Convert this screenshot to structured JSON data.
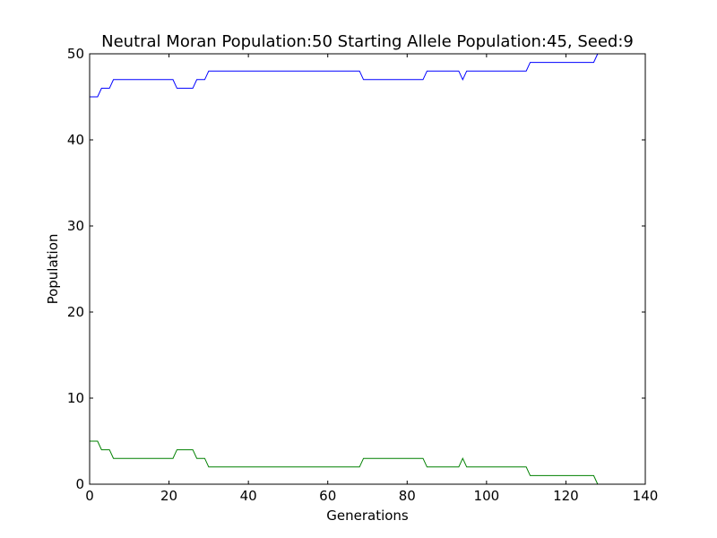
{
  "chart_data": {
    "type": "line",
    "title": "Neutral Moran Population:50 Starting Allele Population:45, Seed:9",
    "xlabel": "Generations",
    "ylabel": "Population",
    "xlim": [
      0,
      140
    ],
    "ylim": [
      0,
      50
    ],
    "xticks": [
      "0",
      "20",
      "40",
      "60",
      "80",
      "100",
      "120",
      "140"
    ],
    "yticks": [
      "0",
      "10",
      "20",
      "30",
      "40",
      "50"
    ],
    "grid": false,
    "legend": "none",
    "series": [
      {
        "color": "#0000ff",
        "x": [
          0,
          2,
          3,
          5,
          6,
          21,
          22,
          26,
          27,
          29,
          30,
          68,
          69,
          84,
          85,
          93,
          94,
          95,
          110,
          111,
          127,
          128
        ],
        "y": [
          45,
          45,
          46,
          46,
          47,
          47,
          46,
          46,
          47,
          47,
          48,
          48,
          47,
          47,
          48,
          48,
          47,
          48,
          48,
          49,
          49,
          50
        ]
      },
      {
        "color": "#008000",
        "x": [
          0,
          2,
          3,
          5,
          6,
          21,
          22,
          26,
          27,
          29,
          30,
          68,
          69,
          84,
          85,
          93,
          94,
          95,
          110,
          111,
          127,
          128
        ],
        "y": [
          5,
          5,
          4,
          4,
          3,
          3,
          4,
          4,
          3,
          3,
          2,
          2,
          3,
          3,
          2,
          2,
          3,
          2,
          2,
          1,
          1,
          0
        ]
      }
    ]
  }
}
